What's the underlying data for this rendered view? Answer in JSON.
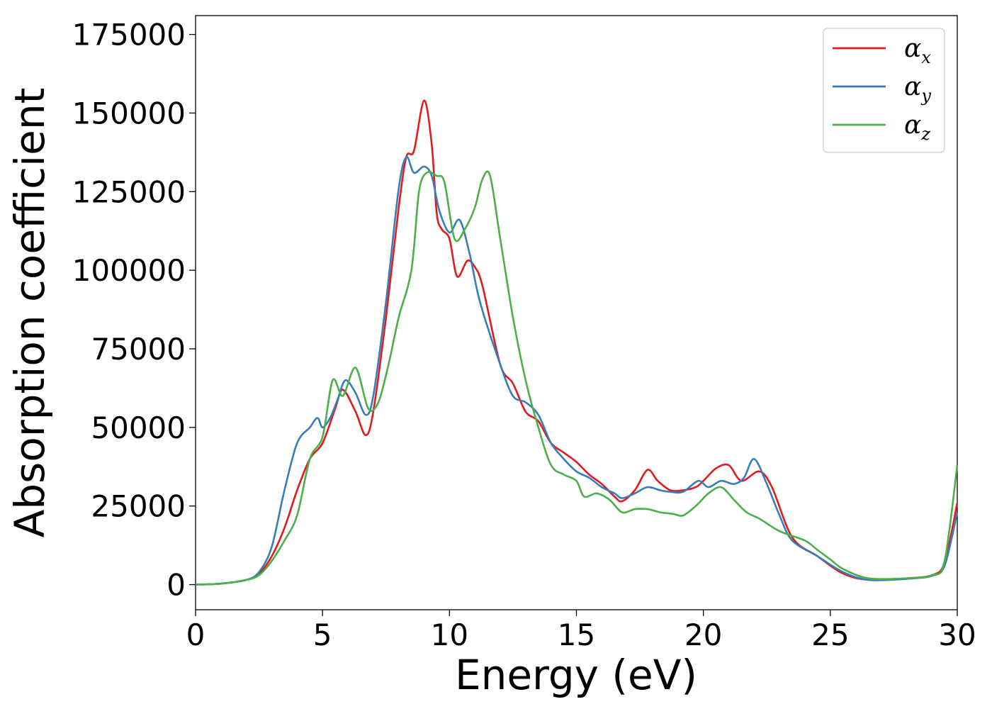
{
  "chart_data": {
    "type": "line",
    "title": "",
    "xlabel": "Energy (eV)",
    "ylabel": "Absorption coefficient",
    "xlim": [
      0,
      30
    ],
    "ylim": [
      -8000,
      181000
    ],
    "xticks": [
      0,
      5,
      10,
      15,
      20,
      25,
      30
    ],
    "yticks": [
      0,
      25000,
      50000,
      75000,
      100000,
      125000,
      150000,
      175000
    ],
    "xtick_labels": [
      "0",
      "5",
      "10",
      "15",
      "20",
      "25",
      "30"
    ],
    "ytick_labels": [
      "0",
      "25000",
      "50000",
      "75000",
      "100000",
      "125000",
      "150000",
      "175000"
    ],
    "grid": false,
    "legend_position": "top-right",
    "series": [
      {
        "name": "αx",
        "symbol": "α",
        "subscript": "x",
        "color": "#e41a1c",
        "x": [
          0,
          1,
          2,
          2.5,
          3,
          3.5,
          4,
          4.5,
          5,
          5.5,
          5.8,
          6.3,
          6.7,
          7,
          7.5,
          8,
          8.3,
          8.6,
          9,
          9.3,
          9.5,
          9.7,
          10,
          10.3,
          10.7,
          11,
          11.3,
          12,
          12.5,
          13,
          13.5,
          14,
          14.5,
          15,
          15.5,
          16,
          16.5,
          16.8,
          17.3,
          17.8,
          18.2,
          18.7,
          19.2,
          19.7,
          20,
          20.5,
          21,
          21.5,
          22.2,
          22.7,
          23.5,
          24.5,
          25.5,
          26.5,
          28,
          29,
          29.5,
          30
        ],
        "y": [
          0,
          300,
          1500,
          3500,
          9000,
          18000,
          30000,
          40000,
          45000,
          56000,
          62000,
          55000,
          47500,
          55000,
          85000,
          120000,
          136000,
          138000,
          154000,
          140000,
          118000,
          113000,
          110000,
          98000,
          103000,
          101000,
          95000,
          70000,
          64000,
          55000,
          52000,
          45000,
          42000,
          39000,
          35000,
          32000,
          28000,
          26500,
          30000,
          36500,
          33000,
          30000,
          30000,
          31000,
          33000,
          37000,
          38000,
          33000,
          36000,
          31000,
          15000,
          9000,
          3500,
          1500,
          2000,
          3000,
          7000,
          26000
        ]
      },
      {
        "name": "αy",
        "symbol": "α",
        "subscript": "y",
        "color": "#377eb8",
        "x": [
          0,
          1,
          2,
          2.5,
          3,
          3.5,
          4,
          4.5,
          4.8,
          5,
          5.3,
          5.6,
          5.9,
          6.3,
          6.7,
          7,
          7.5,
          8,
          8.3,
          8.6,
          9,
          9.3,
          9.6,
          10,
          10.4,
          10.8,
          11.2,
          12,
          12.5,
          13,
          13.5,
          14,
          14.5,
          15,
          15.5,
          16,
          16.5,
          16.8,
          17.3,
          17.8,
          18.3,
          18.7,
          19.2,
          19.8,
          20.2,
          20.7,
          21.2,
          21.6,
          22,
          22.5,
          23,
          23.5,
          24.5,
          25.5,
          26.5,
          28,
          29,
          29.5,
          30
        ],
        "y": [
          0,
          300,
          1500,
          4000,
          12000,
          30000,
          45000,
          50000,
          53000,
          50000,
          53000,
          59000,
          65000,
          61000,
          54000,
          60000,
          90000,
          126000,
          136000,
          131000,
          133000,
          130000,
          119000,
          112000,
          116000,
          105000,
          90000,
          70000,
          60000,
          58000,
          54000,
          45000,
          40000,
          36000,
          34000,
          31000,
          29000,
          27500,
          29000,
          31000,
          30000,
          29500,
          29500,
          33000,
          31000,
          33000,
          32000,
          34000,
          40000,
          32000,
          22000,
          14000,
          9000,
          4000,
          1500,
          1800,
          2800,
          6000,
          23000
        ]
      },
      {
        "name": "αz",
        "symbol": "α",
        "subscript": "z",
        "color": "#4daf4a",
        "x": [
          0,
          1,
          2,
          2.5,
          3,
          3.5,
          4,
          4.5,
          5,
          5.4,
          5.8,
          6.3,
          6.8,
          7.2,
          7.6,
          8,
          8.5,
          8.8,
          9.1,
          9.5,
          9.8,
          10.2,
          10.6,
          11,
          11.3,
          11.6,
          12,
          12.5,
          13,
          13.5,
          14,
          14.5,
          15,
          15.3,
          15.8,
          16.3,
          16.8,
          17.3,
          17.8,
          18.3,
          18.8,
          19.2,
          19.7,
          20.2,
          20.7,
          21.2,
          21.7,
          22.2,
          23,
          24,
          24.5,
          25,
          25.5,
          26.5,
          28,
          29,
          29.5,
          30
        ],
        "y": [
          0,
          300,
          1500,
          3000,
          7500,
          14000,
          22000,
          40000,
          47000,
          65000,
          60000,
          69000,
          56000,
          58000,
          70000,
          85000,
          100000,
          125000,
          131000,
          130000,
          128000,
          110000,
          113000,
          120000,
          129000,
          130000,
          110000,
          85000,
          65000,
          50000,
          38000,
          35000,
          33000,
          28000,
          29000,
          27000,
          23000,
          24000,
          24000,
          23000,
          22500,
          22000,
          25000,
          29000,
          31000,
          27000,
          23000,
          21000,
          17000,
          14000,
          11000,
          8000,
          5000,
          2000,
          2000,
          3000,
          7500,
          38000
        ]
      }
    ]
  }
}
